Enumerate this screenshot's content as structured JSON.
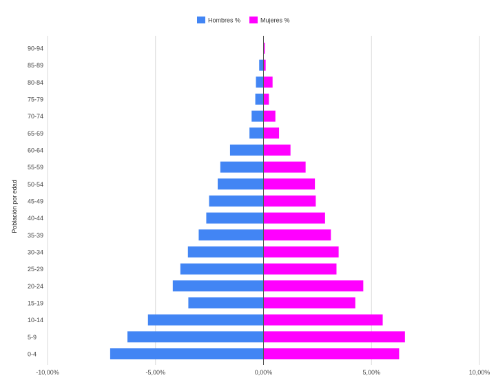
{
  "chart_data": {
    "type": "bar",
    "orientation": "horizontal",
    "categories": [
      "90-94",
      "85-89",
      "80-84",
      "75-79",
      "70-74",
      "65-69",
      "60-64",
      "55-59",
      "50-54",
      "45-49",
      "40-44",
      "35-39",
      "30-34",
      "25-29",
      "20-24",
      "15-19",
      "10-14",
      "5-9",
      "0-4"
    ],
    "series": [
      {
        "name": "Hombres %",
        "color": "#4285f4",
        "values": [
          0.0,
          -0.2,
          -0.35,
          -0.38,
          -0.55,
          -0.65,
          -1.55,
          -2.0,
          -2.12,
          -2.52,
          -2.65,
          -3.0,
          -3.5,
          -3.85,
          -4.2,
          -3.48,
          -5.35,
          -6.3,
          -7.1
        ]
      },
      {
        "name": "Mujeres %",
        "color": "#ff00ff",
        "values": [
          0.06,
          0.1,
          0.42,
          0.25,
          0.55,
          0.72,
          1.25,
          1.95,
          2.38,
          2.42,
          2.85,
          3.12,
          3.48,
          3.38,
          4.62,
          4.25,
          5.52,
          6.55,
          6.28
        ]
      }
    ],
    "xlim": [
      -10,
      10
    ],
    "xticks": [
      -10,
      -5,
      0,
      5,
      10
    ],
    "xtick_labels": [
      "-10,00%",
      "-5,00%",
      "0,00%",
      "5,00%",
      "10,00%"
    ],
    "ylabel": "Población por edad",
    "xlabel": "",
    "title": "",
    "legend_position": "top",
    "grid": true
  }
}
